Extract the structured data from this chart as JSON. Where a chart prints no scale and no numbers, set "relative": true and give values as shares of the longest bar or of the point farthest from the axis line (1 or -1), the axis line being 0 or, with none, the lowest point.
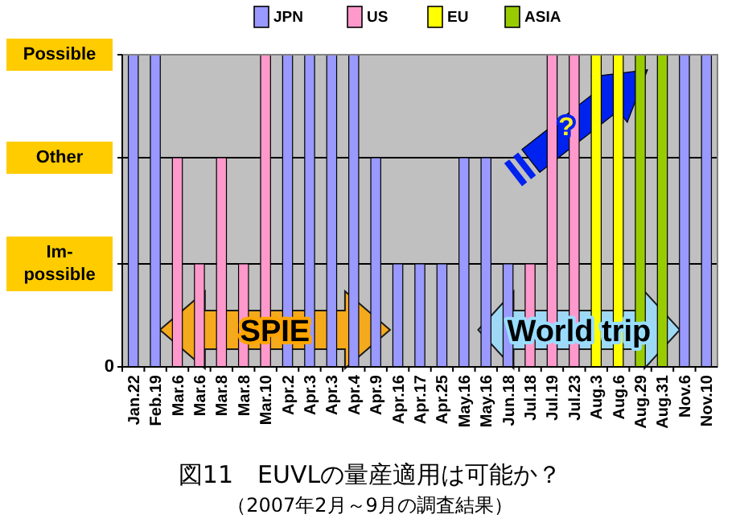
{
  "chart_data": {
    "type": "bar",
    "title": "図11　EUVLの量産適用は可能か？",
    "subtitle": "（2007年2月～9月の調査結果）",
    "categories": [
      "Jan.22",
      "Feb.19",
      "Mar.6",
      "Mar.6",
      "Mar.8",
      "Mar.8",
      "Mar.10",
      "Apr.2",
      "Apr.3",
      "Apr.3",
      "Apr.4",
      "Apr.9",
      "Apr.16",
      "Apr.17",
      "Apr.25",
      "May.16",
      "May.16",
      "Jun.18",
      "Jul.18",
      "Jul.19",
      "Jul.23",
      "Aug.3",
      "Aug.6",
      "Aug.29",
      "Aug.31",
      "Nov.6",
      "Nov.10"
    ],
    "series": [
      {
        "name": "JPN",
        "color": "#9999ff",
        "values": [
          1,
          1,
          null,
          null,
          null,
          null,
          null,
          1,
          1,
          1,
          1,
          0.67,
          0.33,
          0.33,
          0.33,
          0.67,
          0.67,
          0.33,
          null,
          null,
          null,
          null,
          null,
          null,
          null,
          1,
          1
        ]
      },
      {
        "name": "US",
        "color": "#ff99cc",
        "values": [
          null,
          null,
          0.67,
          0.33,
          0.67,
          0.33,
          1,
          null,
          null,
          null,
          null,
          null,
          null,
          null,
          null,
          null,
          null,
          null,
          0.33,
          1,
          1,
          null,
          null,
          null,
          null,
          null,
          null
        ]
      },
      {
        "name": "EU",
        "color": "#ffff00",
        "values": [
          null,
          null,
          null,
          null,
          null,
          null,
          null,
          null,
          null,
          null,
          null,
          null,
          null,
          null,
          null,
          null,
          null,
          null,
          null,
          null,
          null,
          1,
          1,
          null,
          null,
          null,
          null
        ]
      },
      {
        "name": "ASIA",
        "color": "#99cc00",
        "values": [
          null,
          null,
          null,
          null,
          null,
          null,
          null,
          null,
          null,
          null,
          null,
          null,
          null,
          null,
          null,
          null,
          null,
          null,
          null,
          null,
          null,
          null,
          null,
          1,
          1,
          null,
          null
        ]
      }
    ],
    "relative": true,
    "ref_lines": [
      {
        "axis": "y",
        "value": 0,
        "label": "0"
      },
      {
        "axis": "y",
        "value": 0.33,
        "label": "Im-possible"
      },
      {
        "axis": "y",
        "value": 0.67,
        "label": "Other"
      },
      {
        "axis": "y",
        "value": 1,
        "label": "Possible"
      }
    ],
    "legend": "top",
    "annotations": [
      "SPIE",
      "World trip",
      "?"
    ]
  }
}
